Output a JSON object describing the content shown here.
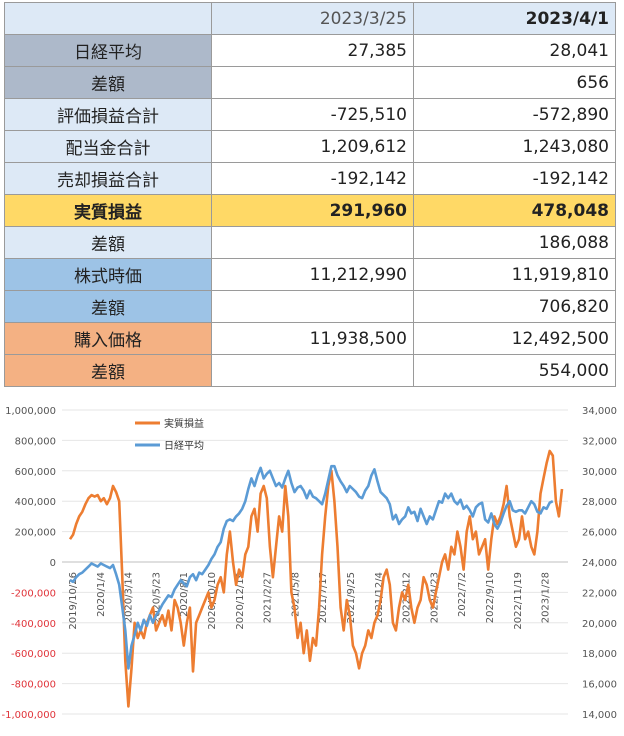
{
  "table": {
    "header": {
      "col1": "2023/3/25",
      "col2": "2023/4/1"
    },
    "rows": [
      {
        "label": "日経平均",
        "v1": "27,385",
        "v2": "28,041"
      },
      {
        "label": "差額",
        "v1": "",
        "v2": "656"
      },
      {
        "label": "評価損益合計",
        "v1": "-725,510",
        "v2": "-572,890"
      },
      {
        "label": "配当金合計",
        "v1": "1,209,612",
        "v2": "1,243,080"
      },
      {
        "label": "売却損益合計",
        "v1": "-192,142",
        "v2": "-192,142"
      },
      {
        "label": "実質損益",
        "v1": "291,960",
        "v2": "478,048"
      },
      {
        "label": "差額",
        "v1": "",
        "v2": "186,088"
      },
      {
        "label": "株式時価",
        "v1": "11,212,990",
        "v2": "11,919,810"
      },
      {
        "label": "差額",
        "v1": "",
        "v2": "706,820"
      },
      {
        "label": "購入価格",
        "v1": "11,938,500",
        "v2": "12,492,500"
      },
      {
        "label": "差額",
        "v1": "",
        "v2": "554,000"
      }
    ],
    "colors": {
      "negative": "#e0343a",
      "nikkei_row": "#adb9ca",
      "light_row": "#dde9f6",
      "highlight_row": "#ffd966",
      "market_row": "#9dc3e6",
      "cost_row": "#f4b183"
    }
  },
  "chart_data": {
    "type": "line",
    "legend_placement": "top-left",
    "grid": true,
    "y_left": {
      "min": -1000000,
      "max": 1000000,
      "step": 200000,
      "ticks": [
        "1,000,000",
        "800,000",
        "600,000",
        "400,000",
        "200,000",
        "0",
        "-200,000",
        "-400,000",
        "-600,000",
        "-800,000",
        "-1,000,000"
      ]
    },
    "y_right": {
      "min": 14000,
      "max": 34000,
      "step": 2000,
      "ticks": [
        "34,000",
        "32,000",
        "30,000",
        "28,000",
        "26,000",
        "24,000",
        "22,000",
        "20,000",
        "18,000",
        "16,000",
        "14,000"
      ]
    },
    "x_tick_labels": [
      "2019/10/26",
      "2020/1/4",
      "2020/3/14",
      "2020/5/23",
      "2020/8/1",
      "2020/10/10",
      "2020/12/19",
      "2021/2/27",
      "2021/5/8",
      "2021/7/17",
      "2021/9/25",
      "2021/12/4",
      "2022/2/12",
      "2022/4/23",
      "2022/7/2",
      "2022/9/10",
      "2022/11/19",
      "2023/1/28"
    ],
    "series": [
      {
        "name": "実質損益",
        "axis": "left",
        "color": "#ed7d31",
        "values": [
          150000,
          180000,
          250000,
          300000,
          330000,
          380000,
          420000,
          440000,
          430000,
          440000,
          400000,
          420000,
          380000,
          420000,
          500000,
          460000,
          400000,
          -100000,
          -650000,
          -950000,
          -700000,
          -400000,
          -500000,
          -450000,
          -500000,
          -400000,
          -350000,
          -300000,
          -450000,
          -400000,
          -350000,
          -420000,
          -320000,
          -450000,
          -250000,
          -300000,
          -400000,
          -550000,
          -400000,
          -300000,
          -720000,
          -400000,
          -350000,
          -300000,
          -250000,
          -200000,
          -300000,
          -250000,
          -150000,
          -100000,
          -200000,
          50000,
          200000,
          0,
          -150000,
          -50000,
          -100000,
          50000,
          100000,
          300000,
          350000,
          200000,
          450000,
          500000,
          420000,
          100000,
          -100000,
          100000,
          300000,
          200000,
          500000,
          300000,
          -200000,
          -300000,
          -500000,
          -400000,
          -600000,
          -450000,
          -650000,
          -500000,
          -550000,
          -300000,
          50000,
          300000,
          500000,
          600000,
          400000,
          100000,
          -300000,
          -450000,
          -250000,
          -350000,
          -550000,
          -600000,
          -700000,
          -600000,
          -550000,
          -450000,
          -500000,
          -400000,
          -350000,
          -250000,
          -100000,
          -50000,
          -150000,
          -400000,
          -450000,
          -300000,
          -200000,
          -250000,
          -150000,
          -300000,
          -400000,
          -300000,
          -250000,
          -100000,
          -150000,
          -250000,
          -300000,
          -200000,
          -100000,
          0,
          50000,
          -50000,
          100000,
          50000,
          200000,
          100000,
          -50000,
          200000,
          300000,
          150000,
          200000,
          50000,
          100000,
          150000,
          -50000,
          150000,
          300000,
          250000,
          300000,
          380000,
          500000,
          300000,
          200000,
          100000,
          150000,
          300000,
          150000,
          200000,
          100000,
          50000,
          200000,
          450000,
          550000,
          650000,
          730000,
          700000,
          400000,
          300000,
          480000
        ]
      },
      {
        "name": "日経平均",
        "axis": "right",
        "color": "#5b9bd5",
        "values": [
          22800,
          22700,
          23000,
          23200,
          23300,
          23500,
          23700,
          23900,
          23800,
          23700,
          23900,
          23800,
          23700,
          23600,
          23800,
          23200,
          22500,
          21000,
          19500,
          17000,
          18500,
          19200,
          20000,
          19500,
          20200,
          19800,
          20500,
          20000,
          20500,
          20800,
          21200,
          21500,
          21800,
          21700,
          22200,
          22500,
          22800,
          22600,
          22400,
          23000,
          23200,
          22800,
          23300,
          23200,
          23500,
          23800,
          24200,
          24500,
          25000,
          25300,
          26200,
          26700,
          26800,
          26700,
          27000,
          27200,
          27500,
          28000,
          28800,
          29500,
          29000,
          29700,
          30200,
          29500,
          29800,
          30000,
          29500,
          29000,
          29200,
          28900,
          29500,
          30000,
          29200,
          28600,
          28900,
          29000,
          28700,
          28200,
          28700,
          28300,
          28200,
          28000,
          27800,
          28500,
          29400,
          30300,
          30300,
          29700,
          29300,
          29000,
          28600,
          29000,
          28800,
          28600,
          28300,
          28200,
          28700,
          29000,
          29700,
          30100,
          29300,
          28600,
          28400,
          28200,
          27800,
          26800,
          27100,
          26500,
          26800,
          27000,
          27600,
          27200,
          27300,
          26700,
          27500,
          27000,
          26500,
          27000,
          26800,
          27400,
          28000,
          27900,
          28500,
          28200,
          28500,
          28000,
          27800,
          28100,
          27500,
          27700,
          27400,
          27000,
          27600,
          27800,
          27900,
          26800,
          26600,
          27200,
          26500,
          26200,
          26600,
          27200,
          27700,
          28000,
          27400,
          27300,
          27400,
          27400,
          27200,
          27600,
          28000,
          27800,
          27300,
          27200,
          27600,
          27500,
          27900,
          28000
        ]
      }
    ]
  }
}
